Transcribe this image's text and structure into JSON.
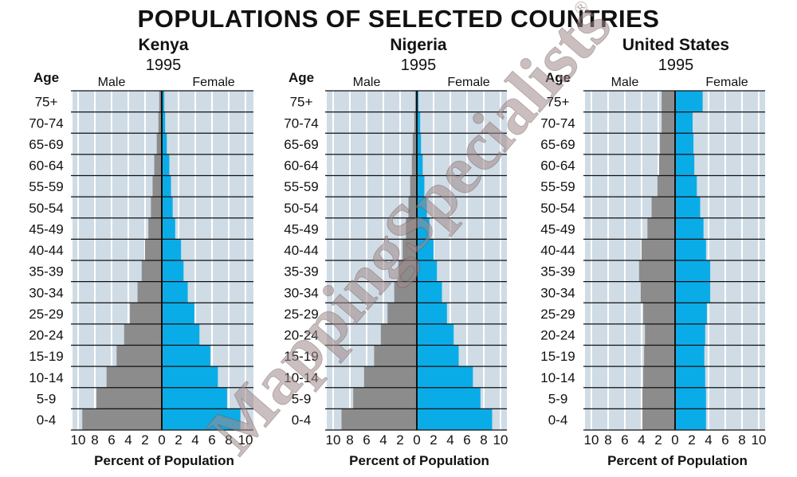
{
  "title": "POPULATIONS OF SELECTED COUNTRIES",
  "watermark": "MappingSpecialists",
  "watermark_mark": "®",
  "colors": {
    "male": "#8c8c8c",
    "female": "#0aace8",
    "grid_bg": "#cfdce6",
    "grid_line": "#ffffff",
    "row_line": "#111111"
  },
  "chart_data": [
    {
      "type": "bar",
      "title": "Kenya",
      "subtitle": "1995",
      "age_label": "Age",
      "male_label": "Male",
      "female_label": "Female",
      "xlabel": "Percent of Population",
      "xlim": [
        -10,
        10
      ],
      "x_ticks": [
        "10",
        "8",
        "6",
        "4",
        "2",
        "0",
        "2",
        "4",
        "6",
        "8",
        "10"
      ],
      "categories": [
        "75+",
        "70-74",
        "65-69",
        "60-64",
        "55-59",
        "50-54",
        "45-49",
        "40-44",
        "35-39",
        "30-34",
        "25-29",
        "20-24",
        "15-19",
        "10-14",
        "5-9",
        "0-4"
      ],
      "grid": true,
      "series": [
        {
          "name": "Male",
          "values": [
            0.3,
            0.4,
            0.6,
            0.9,
            1.1,
            1.3,
            1.6,
            2.0,
            2.4,
            2.9,
            3.8,
            4.5,
            5.4,
            6.6,
            7.8,
            9.5
          ]
        },
        {
          "name": "Female",
          "values": [
            0.3,
            0.4,
            0.6,
            0.9,
            1.1,
            1.3,
            1.6,
            2.3,
            2.6,
            3.1,
            3.9,
            4.5,
            5.8,
            6.7,
            7.8,
            9.4
          ]
        }
      ]
    },
    {
      "type": "bar",
      "title": "Nigeria",
      "subtitle": "1995",
      "age_label": "Age",
      "male_label": "Male",
      "female_label": "Female",
      "xlabel": "Percent of Population",
      "xlim": [
        -10,
        10
      ],
      "x_ticks": [
        "10",
        "8",
        "6",
        "4",
        "2",
        "0",
        "2",
        "4",
        "6",
        "8",
        "10"
      ],
      "categories": [
        "75+",
        "70-74",
        "65-69",
        "60-64",
        "55-59",
        "50-54",
        "45-49",
        "40-44",
        "35-39",
        "30-34",
        "25-29",
        "20-24",
        "15-19",
        "10-14",
        "5-9",
        "0-4"
      ],
      "grid": true,
      "series": [
        {
          "name": "Male",
          "values": [
            0.2,
            0.3,
            0.5,
            0.6,
            0.8,
            1.0,
            1.3,
            1.7,
            2.2,
            2.7,
            3.5,
            4.3,
            5.1,
            6.3,
            7.6,
            9.0
          ]
        },
        {
          "name": "Female",
          "values": [
            0.2,
            0.4,
            0.5,
            0.7,
            0.9,
            1.2,
            1.5,
            2.0,
            2.4,
            3.0,
            3.6,
            4.4,
            5.0,
            6.7,
            7.6,
            9.0
          ]
        }
      ]
    },
    {
      "type": "bar",
      "title": "United States",
      "subtitle": "1995",
      "age_label": "Age",
      "male_label": "Male",
      "female_label": "Female",
      "xlabel": "Percent of Population",
      "xlim": [
        -10,
        10
      ],
      "x_ticks": [
        "10",
        "8",
        "6",
        "4",
        "2",
        "0",
        "2",
        "4",
        "6",
        "8",
        "10"
      ],
      "categories": [
        "75+",
        "70-74",
        "65-69",
        "60-64",
        "55-59",
        "50-54",
        "45-49",
        "40-44",
        "35-39",
        "30-34",
        "25-29",
        "20-24",
        "15-19",
        "10-14",
        "5-9",
        "0-4"
      ],
      "grid": true,
      "series": [
        {
          "name": "Male",
          "values": [
            1.6,
            1.6,
            1.8,
            1.9,
            2.1,
            2.8,
            3.3,
            4.0,
            4.3,
            4.1,
            3.8,
            3.6,
            3.7,
            3.8,
            3.9,
            3.9
          ]
        },
        {
          "name": "Female",
          "values": [
            3.3,
            2.1,
            2.2,
            2.3,
            2.6,
            3.0,
            3.4,
            3.7,
            4.2,
            4.2,
            3.8,
            3.6,
            3.5,
            3.6,
            3.7,
            3.7
          ]
        }
      ]
    }
  ]
}
